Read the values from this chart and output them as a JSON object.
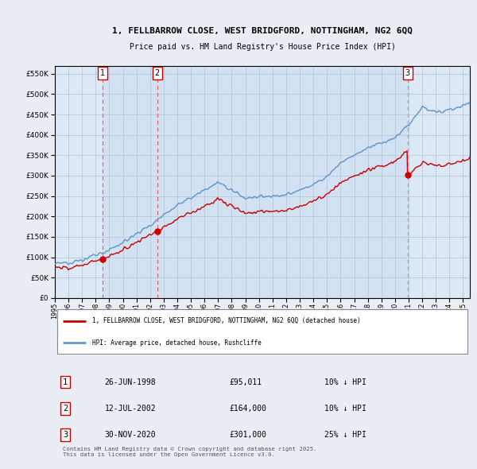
{
  "title_line1": "1, FELLBARROW CLOSE, WEST BRIDGFORD, NOTTINGHAM, NG2 6QQ",
  "title_line2": "Price paid vs. HM Land Registry's House Price Index (HPI)",
  "ylim": [
    0,
    570000
  ],
  "yticks": [
    0,
    50000,
    100000,
    150000,
    200000,
    250000,
    300000,
    350000,
    400000,
    450000,
    500000,
    550000
  ],
  "xlim_start": 1995.0,
  "xlim_end": 2025.5,
  "sale_color": "#cc0000",
  "hpi_color": "#6699cc",
  "hpi_fill_color": "#d0e4f4",
  "dashed_color_red": "#ee6666",
  "dashed_color_gray": "#aaaaaa",
  "sale_dates_num": [
    1998.49,
    2002.53,
    2020.92
  ],
  "sale_prices": [
    95011,
    164000,
    301000
  ],
  "sale_labels": [
    "1",
    "2",
    "3"
  ],
  "legend_sale_label": "1, FELLBARROW CLOSE, WEST BRIDGFORD, NOTTINGHAM, NG2 6QQ (detached house)",
  "legend_hpi_label": "HPI: Average price, detached house, Rushcliffe",
  "table_entries": [
    {
      "num": "1",
      "date": "26-JUN-1998",
      "price": "£95,011",
      "note": "10% ↓ HPI"
    },
    {
      "num": "2",
      "date": "12-JUL-2002",
      "price": "£164,000",
      "note": "10% ↓ HPI"
    },
    {
      "num": "3",
      "date": "30-NOV-2020",
      "price": "£301,000",
      "note": "25% ↓ HPI"
    }
  ],
  "copyright_text": "Contains HM Land Registry data © Crown copyright and database right 2025.\nThis data is licensed under the Open Government Licence v3.0.",
  "background_color": "#e8eef4",
  "plot_bg_color": "#dce8f4",
  "grid_color": "#b0c4d8"
}
